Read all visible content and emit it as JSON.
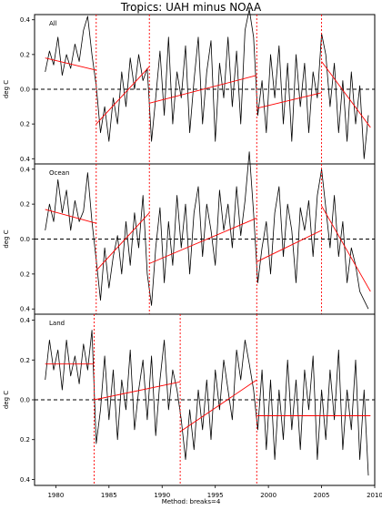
{
  "chart_data": {
    "type": "line",
    "title": "Tropics: UAH minus NOAA",
    "xlabel": "Method: breaks=4",
    "ylabel": "deg C",
    "xlim": [
      1978,
      2010
    ],
    "x_ticks": [
      1980,
      1985,
      1990,
      1995,
      2000,
      2005,
      2010
    ],
    "x_tick_labels": [
      "1980",
      "1985",
      "1990",
      "1995",
      "2000",
      "2005",
      "2010"
    ],
    "y_ticks": [
      0.4,
      0.2,
      0.0,
      -0.2,
      -0.4
    ],
    "y_tick_labels": [
      "0.4",
      "0.2",
      "0.0",
      "0.2",
      "0.4"
    ],
    "reference_line": 0,
    "colors": {
      "series": "#000000",
      "fit": "#ff0000",
      "breaks": "#ff0000",
      "zero": "#000000"
    },
    "panels": [
      {
        "label": "All",
        "ylim": [
          -0.43,
          0.43
        ],
        "breaks": [
          1983.8,
          1988.8,
          1998.9,
          2005.0
        ],
        "fit": [
          [
            [
              1979.0,
              0.18
            ],
            [
              1983.8,
              0.11
            ]
          ],
          [
            [
              1983.8,
              -0.2
            ],
            [
              1988.8,
              0.13
            ]
          ],
          [
            [
              1988.8,
              -0.08
            ],
            [
              1998.9,
              0.08
            ]
          ],
          [
            [
              1998.9,
              -0.11
            ],
            [
              2005.0,
              -0.02
            ]
          ],
          [
            [
              2005.0,
              0.16
            ],
            [
              2009.6,
              -0.22
            ]
          ]
        ],
        "series": {
          "x": [
            1979.0,
            1979.4,
            1979.8,
            1980.2,
            1980.6,
            1981.0,
            1981.4,
            1981.8,
            1982.2,
            1982.6,
            1983.0,
            1983.4,
            1983.8,
            1984.2,
            1984.6,
            1985.0,
            1985.4,
            1985.8,
            1986.2,
            1986.6,
            1987.0,
            1987.4,
            1987.8,
            1988.2,
            1988.6,
            1989.0,
            1989.4,
            1989.8,
            1990.2,
            1990.6,
            1991.0,
            1991.4,
            1991.8,
            1992.2,
            1992.6,
            1993.0,
            1993.4,
            1993.8,
            1994.2,
            1994.6,
            1995.0,
            1995.4,
            1995.8,
            1996.2,
            1996.6,
            1997.0,
            1997.4,
            1997.8,
            1998.2,
            1998.6,
            1999.0,
            1999.4,
            1999.8,
            2000.2,
            2000.6,
            2001.0,
            2001.4,
            2001.8,
            2002.2,
            2002.6,
            2003.0,
            2003.4,
            2003.8,
            2004.2,
            2004.6,
            2005.0,
            2005.4,
            2005.8,
            2006.2,
            2006.6,
            2007.0,
            2007.4,
            2007.8,
            2008.2,
            2008.6,
            2009.0,
            2009.4
          ],
          "y": [
            0.1,
            0.22,
            0.14,
            0.3,
            0.08,
            0.2,
            0.12,
            0.26,
            0.16,
            0.34,
            0.42,
            0.2,
            0.02,
            -0.25,
            -0.1,
            -0.3,
            -0.05,
            -0.2,
            0.1,
            -0.1,
            0.18,
            0.0,
            0.2,
            0.05,
            0.12,
            -0.3,
            -0.05,
            0.22,
            -0.15,
            0.3,
            -0.2,
            0.1,
            -0.05,
            0.25,
            -0.25,
            0.05,
            0.3,
            -0.2,
            0.1,
            0.28,
            -0.3,
            0.15,
            -0.05,
            0.3,
            -0.1,
            0.22,
            -0.2,
            0.34,
            0.46,
            0.3,
            -0.15,
            0.05,
            -0.25,
            0.2,
            -0.05,
            0.25,
            -0.2,
            0.15,
            -0.3,
            0.2,
            -0.1,
            0.15,
            -0.25,
            0.1,
            -0.05,
            0.32,
            0.2,
            -0.1,
            0.15,
            -0.25,
            0.05,
            -0.3,
            0.1,
            -0.2,
            0.02,
            -0.4,
            -0.15
          ]
        }
      },
      {
        "label": "Ocean",
        "ylim": [
          -0.43,
          0.43
        ],
        "breaks": [
          1983.8,
          1988.8,
          1998.9,
          2005.0
        ],
        "fit": [
          [
            [
              1979.0,
              0.17
            ],
            [
              1983.8,
              0.09
            ]
          ],
          [
            [
              1983.8,
              -0.18
            ],
            [
              1988.8,
              0.15
            ]
          ],
          [
            [
              1988.8,
              -0.14
            ],
            [
              1998.9,
              0.12
            ]
          ],
          [
            [
              1998.9,
              -0.13
            ],
            [
              2005.0,
              0.05
            ]
          ],
          [
            [
              2005.0,
              0.19
            ],
            [
              2009.6,
              -0.3
            ]
          ]
        ],
        "series": {
          "x": [
            1979.0,
            1979.4,
            1979.8,
            1980.2,
            1980.6,
            1981.0,
            1981.4,
            1981.8,
            1982.2,
            1982.6,
            1983.0,
            1983.4,
            1983.8,
            1984.2,
            1984.6,
            1985.0,
            1985.4,
            1985.8,
            1986.2,
            1986.6,
            1987.0,
            1987.4,
            1987.8,
            1988.2,
            1988.6,
            1989.0,
            1989.4,
            1989.8,
            1990.2,
            1990.6,
            1991.0,
            1991.4,
            1991.8,
            1992.2,
            1992.6,
            1993.0,
            1993.4,
            1993.8,
            1994.2,
            1994.6,
            1995.0,
            1995.4,
            1995.8,
            1996.2,
            1996.6,
            1997.0,
            1997.4,
            1997.8,
            1998.2,
            1998.6,
            1999.0,
            1999.4,
            1999.8,
            2000.2,
            2000.6,
            2001.0,
            2001.4,
            2001.8,
            2002.2,
            2002.6,
            2003.0,
            2003.4,
            2003.8,
            2004.2,
            2004.6,
            2005.0,
            2005.4,
            2005.8,
            2006.2,
            2006.6,
            2007.0,
            2007.4,
            2007.8,
            2008.2,
            2008.6,
            2009.0,
            2009.4
          ],
          "y": [
            0.05,
            0.2,
            0.1,
            0.34,
            0.15,
            0.28,
            0.05,
            0.22,
            0.1,
            0.16,
            0.38,
            0.1,
            -0.12,
            -0.35,
            -0.05,
            -0.28,
            -0.1,
            0.02,
            -0.2,
            0.1,
            -0.15,
            0.15,
            -0.05,
            0.25,
            -0.2,
            -0.38,
            -0.05,
            0.18,
            -0.25,
            0.1,
            -0.15,
            0.25,
            -0.05,
            0.2,
            -0.2,
            0.15,
            0.3,
            -0.1,
            0.2,
            0.05,
            -0.15,
            0.28,
            0.05,
            0.2,
            -0.05,
            0.3,
            0.02,
            0.22,
            0.5,
            0.15,
            -0.25,
            -0.05,
            0.1,
            -0.2,
            0.15,
            0.3,
            -0.1,
            0.2,
            0.05,
            -0.25,
            0.18,
            0.05,
            0.22,
            -0.1,
            0.25,
            0.4,
            0.18,
            -0.05,
            0.25,
            -0.1,
            0.1,
            -0.25,
            -0.05,
            -0.15,
            -0.3,
            -0.35,
            -0.4
          ]
        }
      },
      {
        "label": "Land",
        "ylim": [
          -0.43,
          0.43
        ],
        "breaks": [
          1983.6,
          1991.7,
          1998.9
        ],
        "fit": [
          [
            [
              1979.0,
              0.18
            ],
            [
              1983.6,
              0.18
            ]
          ],
          [
            [
              1983.6,
              0.0
            ],
            [
              1991.7,
              0.09
            ]
          ],
          [
            [
              1991.7,
              -0.16
            ],
            [
              1998.9,
              0.1
            ]
          ],
          [
            [
              1998.9,
              -0.08
            ],
            [
              2009.6,
              -0.08
            ]
          ]
        ],
        "series": {
          "x": [
            1979.0,
            1979.4,
            1979.8,
            1980.2,
            1980.6,
            1981.0,
            1981.4,
            1981.8,
            1982.2,
            1982.6,
            1983.0,
            1983.4,
            1983.8,
            1984.2,
            1984.6,
            1985.0,
            1985.4,
            1985.8,
            1986.2,
            1986.6,
            1987.0,
            1987.4,
            1987.8,
            1988.2,
            1988.6,
            1989.0,
            1989.4,
            1989.8,
            1990.2,
            1990.6,
            1991.0,
            1991.4,
            1991.8,
            1992.2,
            1992.6,
            1993.0,
            1993.4,
            1993.8,
            1994.2,
            1994.6,
            1995.0,
            1995.4,
            1995.8,
            1996.2,
            1996.6,
            1997.0,
            1997.4,
            1997.8,
            1998.2,
            1998.6,
            1999.0,
            1999.4,
            1999.8,
            2000.2,
            2000.6,
            2001.0,
            2001.4,
            2001.8,
            2002.2,
            2002.6,
            2003.0,
            2003.4,
            2003.8,
            2004.2,
            2004.6,
            2005.0,
            2005.4,
            2005.8,
            2006.2,
            2006.6,
            2007.0,
            2007.4,
            2007.8,
            2008.2,
            2008.6,
            2009.0,
            2009.4
          ],
          "y": [
            0.1,
            0.3,
            0.15,
            0.25,
            0.05,
            0.3,
            0.12,
            0.22,
            0.08,
            0.28,
            0.15,
            0.35,
            -0.22,
            -0.05,
            0.22,
            -0.1,
            0.15,
            -0.2,
            0.1,
            -0.05,
            0.25,
            -0.15,
            0.05,
            0.2,
            -0.1,
            0.22,
            -0.18,
            0.1,
            0.3,
            -0.05,
            0.15,
            0.05,
            -0.1,
            -0.3,
            -0.05,
            -0.25,
            0.05,
            -0.15,
            0.1,
            -0.2,
            0.15,
            -0.05,
            0.2,
            0.05,
            -0.1,
            0.25,
            0.1,
            0.3,
            0.18,
            0.05,
            -0.15,
            0.15,
            -0.25,
            0.1,
            -0.3,
            0.05,
            -0.2,
            0.2,
            -0.15,
            0.1,
            -0.25,
            0.15,
            -0.05,
            0.22,
            -0.3,
            0.05,
            -0.2,
            0.15,
            -0.1,
            0.25,
            -0.25,
            0.05,
            -0.15,
            0.2,
            -0.3,
            0.05,
            -0.38
          ]
        }
      }
    ]
  }
}
